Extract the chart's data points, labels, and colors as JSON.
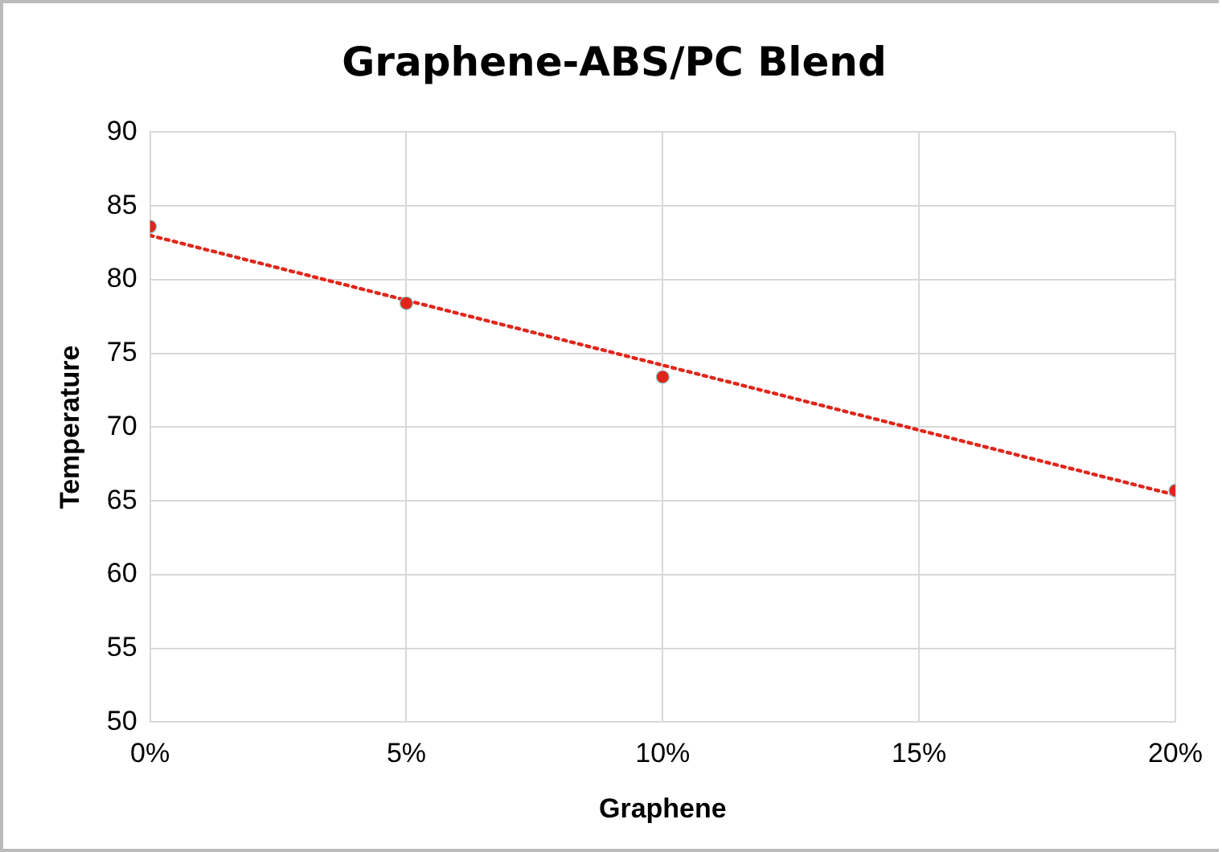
{
  "chart_data": {
    "type": "scatter",
    "title": "Graphene-ABS/PC Blend",
    "xlabel": "Graphene",
    "ylabel": "Temperature",
    "series": [
      {
        "color": "#e0261b",
        "x": [
          0,
          5,
          10,
          20
        ],
        "values": [
          83.6,
          78.4,
          73.4,
          65.7
        ],
        "marker": "circle"
      },
      {
        "type": "line",
        "color": "#e0261b",
        "x": [
          0,
          20
        ],
        "values": [
          83.0,
          65.4
        ],
        "marker": "none",
        "line_style": "dotted"
      }
    ],
    "xlim": [
      0,
      20
    ],
    "xticks": [
      {
        "value": 0,
        "label": "0%"
      },
      {
        "value": 5,
        "label": "5%"
      },
      {
        "value": 10,
        "label": "10%"
      },
      {
        "value": 15,
        "label": "15%"
      },
      {
        "value": 20,
        "label": "20%"
      }
    ],
    "ylim": [
      50,
      90
    ],
    "yticks": [
      50,
      55,
      60,
      65,
      70,
      75,
      80,
      85,
      90
    ],
    "grid": true,
    "legend": false
  }
}
